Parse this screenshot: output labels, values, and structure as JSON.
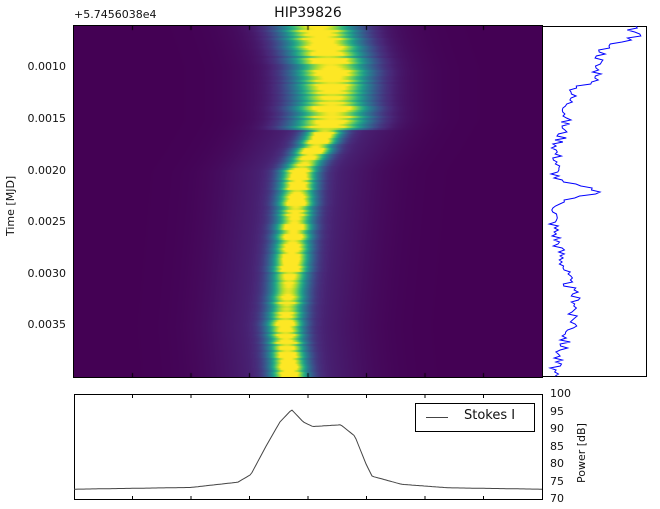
{
  "chart_data": [
    {
      "type": "heatmap",
      "title": "HIP39826",
      "ylabel": "Time [MJD]",
      "offset_label": "+5.7456038e4",
      "ylim": [
        0.0006,
        0.004
      ],
      "yticks": [
        "0.0010",
        "0.0015",
        "0.0020",
        "0.0025",
        "0.0030",
        "0.0035"
      ],
      "ytick_values": [
        0.001,
        0.0015,
        0.002,
        0.0025,
        0.003,
        0.0035
      ],
      "colormap": "viridis",
      "ridge_time": [
        0.0006,
        0.001,
        0.0015,
        0.0018,
        0.002,
        0.0025,
        0.003,
        0.0035,
        0.004
      ],
      "ridge_center_frac": [
        0.52,
        0.55,
        0.55,
        0.51,
        0.48,
        0.47,
        0.46,
        0.45,
        0.46
      ]
    },
    {
      "type": "line",
      "color": "#0000ff",
      "ylim": [
        0.0006,
        0.004
      ],
      "time": [
        0.0006,
        0.0007,
        0.0008,
        0.0009,
        0.001,
        0.0011,
        0.0012,
        0.0013,
        0.0014,
        0.0015,
        0.0016,
        0.0017,
        0.0018,
        0.0019,
        0.002,
        0.0021,
        0.0022,
        0.0023,
        0.0024,
        0.0025,
        0.0026,
        0.0027,
        0.0028,
        0.0029,
        0.003,
        0.0031,
        0.0032,
        0.0033,
        0.0034,
        0.0035,
        0.0036,
        0.0037,
        0.0038,
        0.0039,
        0.004
      ],
      "intensity": [
        0.85,
        0.9,
        0.6,
        0.55,
        0.5,
        0.55,
        0.3,
        0.25,
        0.22,
        0.2,
        0.18,
        0.15,
        0.1,
        0.12,
        0.1,
        0.12,
        0.55,
        0.15,
        0.1,
        0.08,
        0.1,
        0.12,
        0.15,
        0.18,
        0.2,
        0.22,
        0.28,
        0.32,
        0.25,
        0.3,
        0.2,
        0.18,
        0.12,
        0.1,
        0.05
      ]
    },
    {
      "type": "line",
      "color": "#444444",
      "ylabel": "Power [dB]",
      "ylim": [
        70,
        100
      ],
      "yticks": [
        "100",
        "95",
        "90",
        "85",
        "80",
        "75",
        "70"
      ],
      "legend": "Stokes I",
      "legend_placement": "top-right",
      "x_frac": [
        0,
        0.25,
        0.35,
        0.378,
        0.41,
        0.44,
        0.465,
        0.49,
        0.51,
        0.57,
        0.6,
        0.624,
        0.637,
        0.7,
        0.8,
        1
      ],
      "power": [
        72.8,
        73.3,
        74.8,
        77,
        85,
        92,
        95.5,
        92,
        90.7,
        91.2,
        88,
        80,
        76.5,
        74.2,
        73.2,
        72.8
      ]
    }
  ]
}
